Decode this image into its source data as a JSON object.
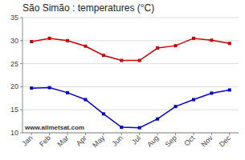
{
  "chart_data": {
    "type": "line",
    "title": "São Simão : temperatures (°C)",
    "categories": [
      "Jan",
      "Feb",
      "Mar",
      "Apr",
      "May",
      "Jun",
      "Jul",
      "Aug",
      "Sep",
      "Oct",
      "Nov",
      "Dec"
    ],
    "series": [
      {
        "color": "#cc0000",
        "marker": "square",
        "values": [
          29.8,
          30.5,
          30.0,
          28.8,
          26.8,
          25.7,
          25.7,
          28.4,
          28.9,
          30.5,
          30.1,
          29.4
        ]
      },
      {
        "color": "#0000cc",
        "marker": "square",
        "values": [
          19.7,
          19.8,
          18.7,
          17.2,
          14.1,
          11.2,
          11.1,
          13.0,
          15.7,
          17.2,
          18.6,
          19.3
        ]
      }
    ],
    "ylim": [
      10,
      35
    ],
    "yticks": [
      10,
      15,
      20,
      25,
      30,
      35
    ],
    "grid": true,
    "annotations": [
      "www.allmetsat.com"
    ]
  }
}
